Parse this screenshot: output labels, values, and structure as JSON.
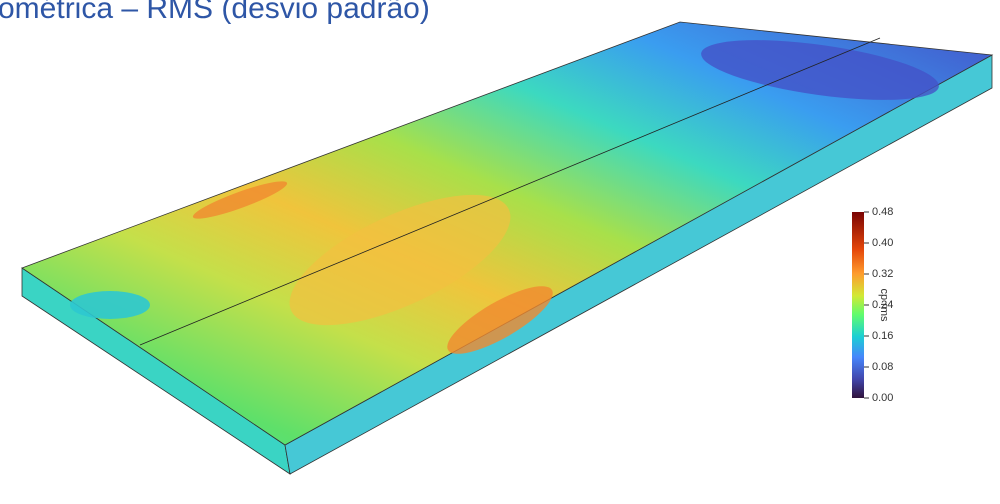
{
  "title": "ométrica – RMS (desvio padrão)",
  "colorbar": {
    "label": "cp rms",
    "ticks": [
      {
        "value": 0.48,
        "label": "0.48"
      },
      {
        "value": 0.4,
        "label": "0.40"
      },
      {
        "value": 0.32,
        "label": "0.32"
      },
      {
        "value": 0.24,
        "label": "0.24"
      },
      {
        "value": 0.16,
        "label": "0.16"
      },
      {
        "value": 0.08,
        "label": "0.08"
      },
      {
        "value": 0,
        "label": "0.00"
      }
    ],
    "range": [
      0,
      0.48
    ]
  }
}
